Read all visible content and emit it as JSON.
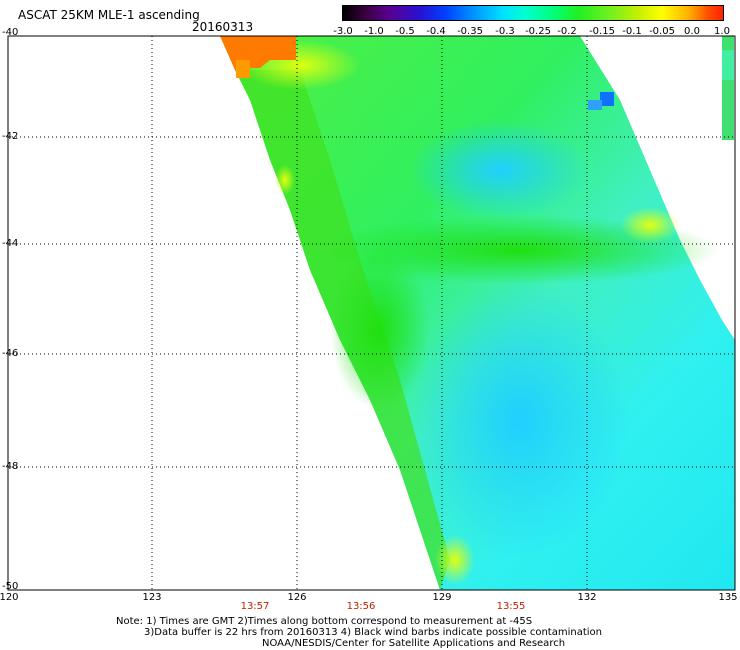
{
  "header": {
    "title": "ASCAT 25KM MLE-1 ascending",
    "date": "20160313"
  },
  "colorbar": {
    "ticks": [
      "-3.0",
      "-1.0",
      "-0.5",
      "-0.4",
      "-0.35",
      "-0.3",
      "-0.25",
      "-0.2",
      "-0.15",
      "-0.1",
      "-0.05",
      "0.0",
      "1.0"
    ],
    "colors": [
      "#000000",
      "#5a0090",
      "#0040ff",
      "#00e0ff",
      "#00ff80",
      "#70f020",
      "#ffff00",
      "#ff5000"
    ]
  },
  "map": {
    "lat_labels": [
      "-40",
      "-42",
      "-44",
      "-46",
      "-48",
      "-50"
    ],
    "lon_labels": [
      "120",
      "123",
      "126",
      "129",
      "132",
      "135"
    ],
    "time_labels": [
      "13:57",
      "13:56",
      "13:55"
    ],
    "lon_range": [
      120,
      135
    ],
    "lat_range": [
      -50,
      -40
    ]
  },
  "notes": {
    "line1": "Note: 1) Times are GMT 2)Times along bottom correspond to measurement at -45S",
    "line2": "3)Data buffer is 22 hrs from 20160313 4) Black wind barbs indicate possible contamination",
    "line3": "NOAA/NESDIS/Center for Satellite Applications and Research"
  }
}
